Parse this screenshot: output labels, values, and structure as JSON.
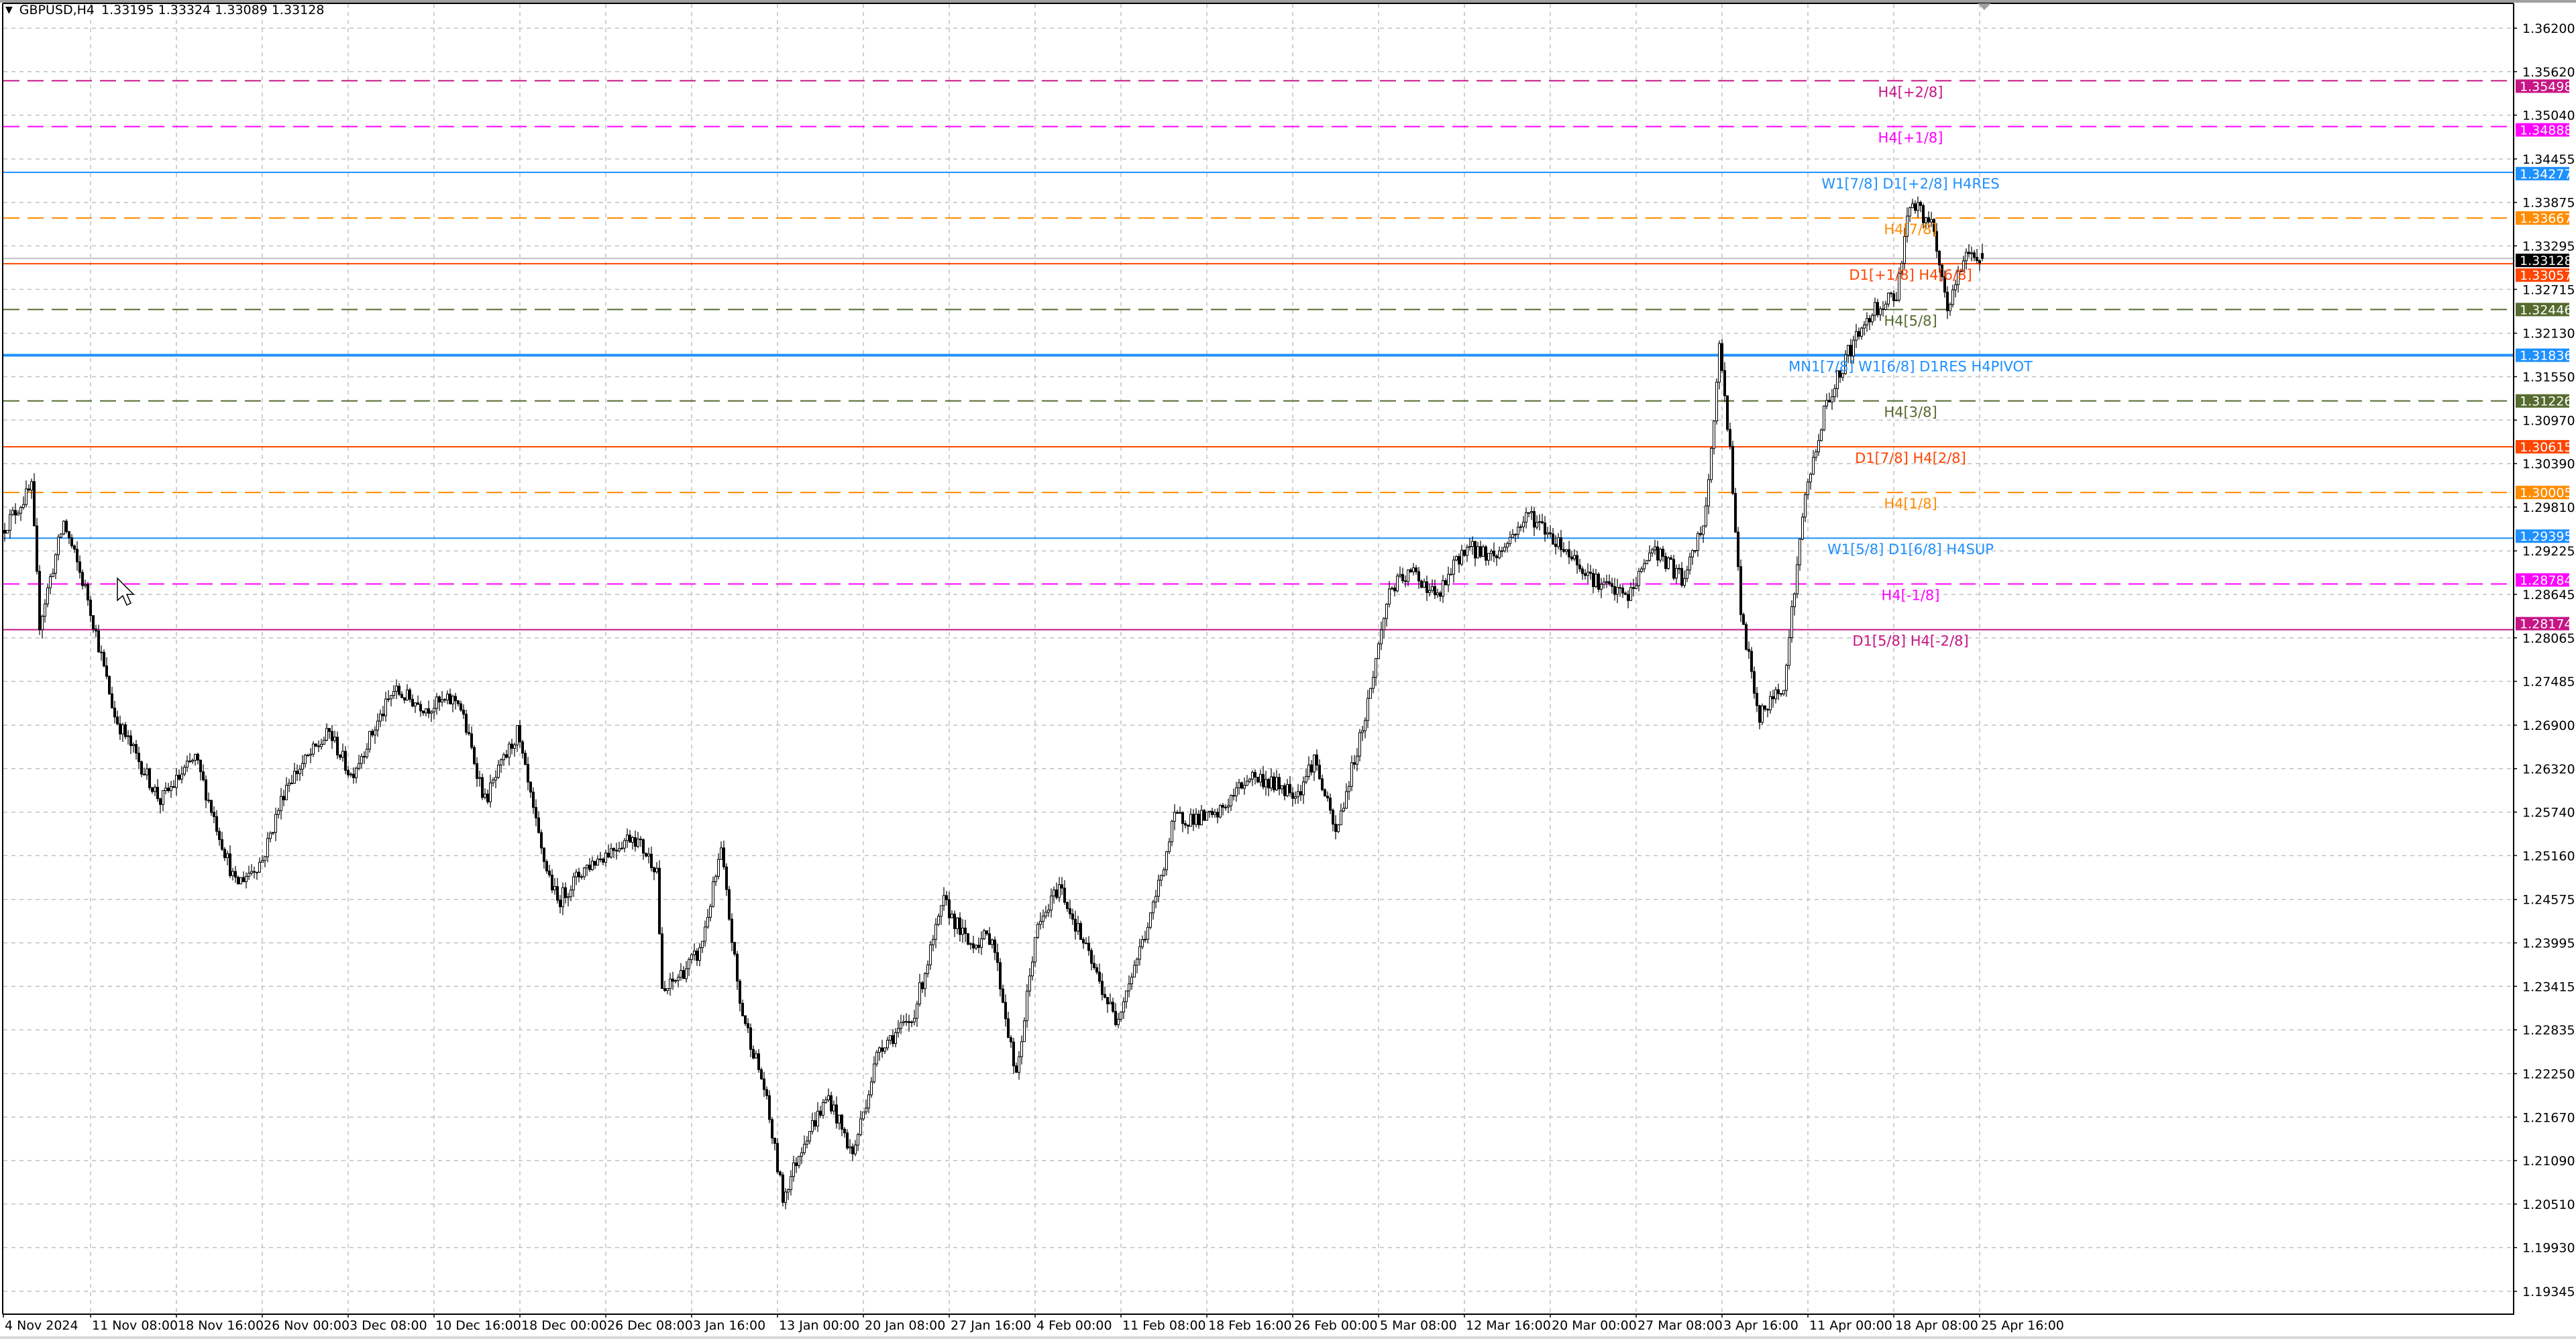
{
  "header": {
    "menu_icon": "triangle-down-icon",
    "symbol": "GBPUSD,H4",
    "ohlc": "1.33195 1.33324 1.33089 1.33128"
  },
  "chart_data": {
    "type": "candlestick",
    "symbol": "GBPUSD",
    "timeframe": "H4",
    "last_bar": {
      "open": 1.33195,
      "high": 1.33324,
      "low": 1.33089,
      "close": 1.33128
    },
    "current_price": "1.33128",
    "price_ticks": [
      "1.36200",
      "1.35620",
      "1.35040",
      "1.34455",
      "1.33875",
      "1.33295",
      "1.32715",
      "1.32130",
      "1.31550",
      "1.30970",
      "1.30390",
      "1.29810",
      "1.29225",
      "1.28645",
      "1.28065",
      "1.27485",
      "1.26900",
      "1.26320",
      "1.25740",
      "1.25160",
      "1.24575",
      "1.23995",
      "1.23415",
      "1.22835",
      "1.22250",
      "1.21670",
      "1.21090",
      "1.20510",
      "1.19930",
      "1.19345"
    ],
    "time_labels": [
      {
        "label": "4 Nov 2024",
        "date": "2024-11-04T00:00"
      },
      {
        "label": "11 Nov 08:00",
        "date": "2024-11-11T08:00"
      },
      {
        "label": "18 Nov 16:00",
        "date": "2024-11-18T16:00"
      },
      {
        "label": "26 Nov 00:00",
        "date": "2024-11-26T00:00"
      },
      {
        "label": "3 Dec 08:00",
        "date": "2024-12-03T08:00"
      },
      {
        "label": "10 Dec 16:00",
        "date": "2024-12-10T16:00"
      },
      {
        "label": "18 Dec 00:00",
        "date": "2024-12-18T00:00"
      },
      {
        "label": "26 Dec 08:00",
        "date": "2024-12-26T08:00"
      },
      {
        "label": "3 Jan 16:00",
        "date": "2025-01-03T16:00"
      },
      {
        "label": "13 Jan 00:00",
        "date": "2025-01-13T00:00"
      },
      {
        "label": "20 Jan 08:00",
        "date": "2025-01-20T08:00"
      },
      {
        "label": "27 Jan 16:00",
        "date": "2025-01-27T16:00"
      },
      {
        "label": "4 Feb 00:00",
        "date": "2025-02-04T00:00"
      },
      {
        "label": "11 Feb 08:00",
        "date": "2025-02-11T08:00"
      },
      {
        "label": "18 Feb 16:00",
        "date": "2025-02-18T16:00"
      },
      {
        "label": "26 Feb 00:00",
        "date": "2025-02-26T00:00"
      },
      {
        "label": "5 Mar 08:00",
        "date": "2025-03-05T08:00"
      },
      {
        "label": "12 Mar 16:00",
        "date": "2025-03-12T16:00"
      },
      {
        "label": "20 Mar 00:00",
        "date": "2025-03-20T00:00"
      },
      {
        "label": "27 Mar 08:00",
        "date": "2025-03-27T08:00"
      },
      {
        "label": "3 Apr 16:00",
        "date": "2025-04-03T16:00"
      },
      {
        "label": "11 Apr 00:00",
        "date": "2025-04-11T00:00"
      },
      {
        "label": "18 Apr 08:00",
        "date": "2025-04-18T08:00"
      },
      {
        "label": "25 Apr 16:00",
        "date": "2025-04-25T16:00"
      }
    ],
    "price_path": [
      [
        "2024-11-04T00:00",
        1.295
      ],
      [
        "2024-11-05T20:00",
        1.3006
      ],
      [
        "2024-11-06T08:00",
        1.2826
      ],
      [
        "2024-11-07T20:00",
        1.2961
      ],
      [
        "2024-11-11T08:00",
        1.286
      ],
      [
        "2024-11-13T00:00",
        1.2702
      ],
      [
        "2024-11-15T20:00",
        1.2589
      ],
      [
        "2024-11-20T00:00",
        1.2646
      ],
      [
        "2024-11-22T12:00",
        1.2477
      ],
      [
        "2024-11-26T04:00",
        1.251
      ],
      [
        "2024-11-27T16:00",
        1.2612
      ],
      [
        "2024-12-02T08:00",
        1.268
      ],
      [
        "2024-12-03T16:00",
        1.2623
      ],
      [
        "2024-12-06T08:00",
        1.2736
      ],
      [
        "2024-12-10T08:00",
        1.2714
      ],
      [
        "2024-12-12T08:00",
        1.2725
      ],
      [
        "2024-12-16T00:00",
        1.2589
      ],
      [
        "2024-12-18T00:00",
        1.268
      ],
      [
        "2024-12-19T12:00",
        1.2521
      ],
      [
        "2024-12-20T12:00",
        1.2454
      ],
      [
        "2024-12-24T04:00",
        1.2499
      ],
      [
        "2024-12-30T04:00",
        1.2544
      ],
      [
        "2024-12-31T16:00",
        1.2499
      ],
      [
        "2025-01-02T00:00",
        1.233
      ],
      [
        "2025-01-06T08:00",
        1.2387
      ],
      [
        "2025-01-07T16:00",
        1.2521
      ],
      [
        "2025-01-08T20:00",
        1.2318
      ],
      [
        "2025-01-10T08:00",
        1.2206
      ],
      [
        "2025-01-13T12:00",
        1.2059
      ],
      [
        "2025-01-14T20:00",
        1.2138
      ],
      [
        "2025-01-16T08:00",
        1.2194
      ],
      [
        "2025-01-17T20:00",
        1.2116
      ],
      [
        "2025-01-21T12:00",
        1.2262
      ],
      [
        "2025-01-23T12:00",
        1.2296
      ],
      [
        "2025-01-27T12:00",
        1.2454
      ],
      [
        "2025-01-29T00:00",
        1.2398
      ],
      [
        "2025-01-30T12:00",
        1.2409
      ],
      [
        "2025-02-03T00:00",
        1.2217
      ],
      [
        "2025-02-04T04:00",
        1.2409
      ],
      [
        "2025-02-05T16:00",
        1.2477
      ],
      [
        "2025-02-07T20:00",
        1.2364
      ],
      [
        "2025-02-11T04:00",
        1.2296
      ],
      [
        "2025-02-13T08:00",
        1.2432
      ],
      [
        "2025-02-14T20:00",
        1.2566
      ],
      [
        "2025-02-19T08:00",
        1.2566
      ],
      [
        "2025-02-21T12:00",
        1.2623
      ],
      [
        "2025-02-26T12:00",
        1.26
      ],
      [
        "2025-02-27T12:00",
        1.2646
      ],
      [
        "2025-02-28T20:00",
        1.2544
      ],
      [
        "2025-03-04T16:00",
        1.2702
      ],
      [
        "2025-03-06T04:00",
        1.2871
      ],
      [
        "2025-03-07T16:00",
        1.2894
      ],
      [
        "2025-03-11T04:00",
        1.286
      ],
      [
        "2025-03-12T20:00",
        1.2927
      ],
      [
        "2025-03-14T20:00",
        1.2916
      ],
      [
        "2025-03-18T20:00",
        1.2972
      ],
      [
        "2025-03-21T00:00",
        1.2927
      ],
      [
        "2025-03-25T00:00",
        1.2882
      ],
      [
        "2025-03-27T00:00",
        1.286
      ],
      [
        "2025-03-28T12:00",
        1.2927
      ],
      [
        "2025-04-01T12:00",
        1.2882
      ],
      [
        "2025-04-02T20:00",
        1.2972
      ],
      [
        "2025-04-03T16:00",
        1.319
      ],
      [
        "2025-04-04T08:00",
        1.3063
      ],
      [
        "2025-04-07T00:00",
        1.2837
      ],
      [
        "2025-04-08T04:00",
        1.27
      ],
      [
        "2025-04-09T16:00",
        1.2747
      ],
      [
        "2025-04-11T00:00",
        1.2995
      ],
      [
        "2025-04-14T04:00",
        1.3108
      ],
      [
        "2025-04-15T16:00",
        1.3187
      ],
      [
        "2025-04-17T04:00",
        1.3243
      ],
      [
        "2025-04-18T16:00",
        1.3266
      ],
      [
        "2025-04-21T12:00",
        1.339
      ],
      [
        "2025-04-22T20:00",
        1.3357
      ],
      [
        "2025-04-23T20:00",
        1.3243
      ],
      [
        "2025-04-25T00:00",
        1.3323
      ],
      [
        "2025-04-25T20:00",
        1.33128
      ]
    ],
    "levels": [
      {
        "price": "1.35498",
        "label": "H4[+2/8]",
        "color": "#C71585",
        "style": "dashed"
      },
      {
        "price": "1.34888",
        "label": "H4[+1/8]",
        "color": "#FF00FF",
        "style": "dashed"
      },
      {
        "price": "1.34277",
        "label": "W1[7/8] D1[+2/8] H4RES",
        "color": "#1E90FF",
        "style": "solid"
      },
      {
        "price": "1.33667",
        "label": "H4[7/8]",
        "color": "#FF8C00",
        "style": "dashed"
      },
      {
        "price": "1.33057",
        "label": "D1[+1/8] H4[6/8]",
        "color": "#FF4500",
        "style": "solid"
      },
      {
        "price": "1.32446",
        "label": "H4[5/8]",
        "color": "#556B2F",
        "style": "dashed"
      },
      {
        "price": "1.31836",
        "label": "MN1[7/8] W1[6/8] D1RES H4PIVOT",
        "color": "#1E90FF",
        "style": "thick"
      },
      {
        "price": "1.31226",
        "label": "H4[3/8]",
        "color": "#556B2F",
        "style": "dashed"
      },
      {
        "price": "1.30615",
        "label": "D1[7/8] H4[2/8]",
        "color": "#FF4500",
        "style": "solid"
      },
      {
        "price": "1.30005",
        "label": "H4[1/8]",
        "color": "#FF8C00",
        "style": "dashed"
      },
      {
        "price": "1.29395",
        "label": "W1[5/8] D1[6/8] H4SUP",
        "color": "#1E90FF",
        "style": "solid"
      },
      {
        "price": "1.28784",
        "label": "H4[-1/8]",
        "color": "#FF00FF",
        "style": "dashed"
      },
      {
        "price": "1.28174",
        "label": "D1[5/8] H4[-2/8]",
        "color": "#C71585",
        "style": "solid"
      }
    ],
    "colors": {
      "bull_body": "#FFFFFF",
      "bear_body": "#000000",
      "wick": "#000000",
      "grid": "#C0C0C0",
      "current_price_line": "#C0C0C0",
      "current_price_tag": "#000000"
    },
    "grid": true
  },
  "cursor": {
    "icon": "mouse-pointer-icon"
  }
}
